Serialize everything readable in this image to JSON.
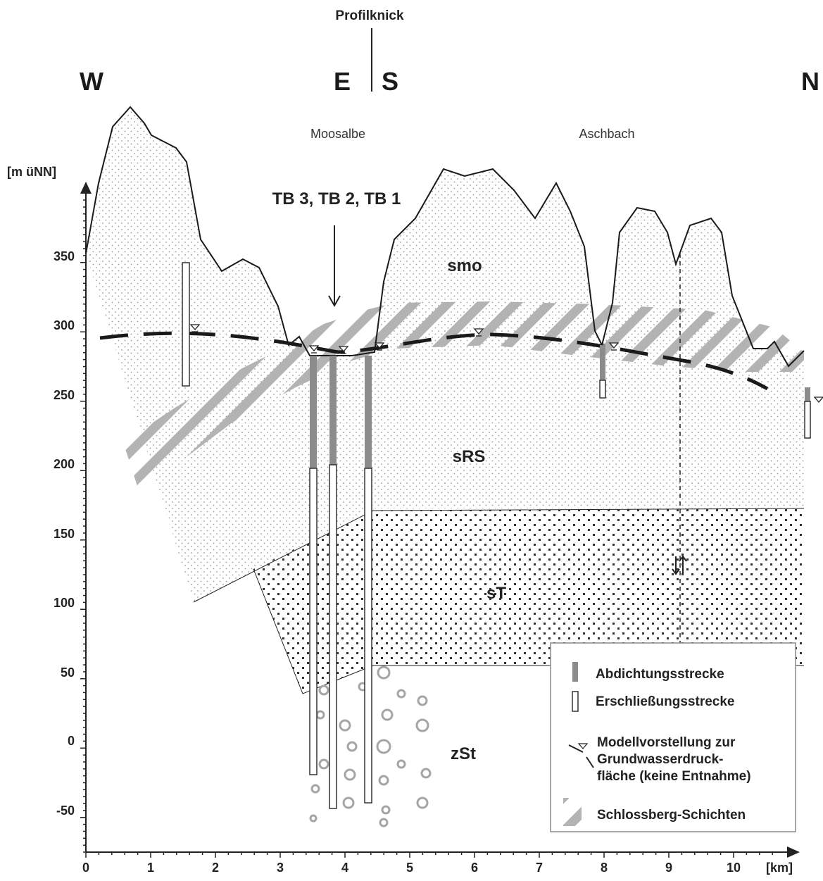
{
  "direction_labels": {
    "west": "W",
    "east": "E",
    "south": "S",
    "north": "N"
  },
  "kink_label": "Profilknick",
  "river_labels": {
    "moosalbe": "Moosalbe",
    "aschbach": "Aschbach"
  },
  "wells_label": "TB 3, TB 2, TB 1",
  "y_axis_label": "[m üNN]",
  "x_axis_label": "[km]",
  "y_ticks": [
    "350",
    "300",
    "250",
    "200",
    "150",
    "100",
    "50",
    "0",
    "-50"
  ],
  "x_ticks": [
    "0",
    "1",
    "2",
    "3",
    "4",
    "5",
    "6",
    "7",
    "8",
    "9",
    "10"
  ],
  "layers": {
    "smo": "smo",
    "srs": "sRS",
    "st": "sT",
    "zst": "zSt"
  },
  "legend": {
    "sealing": "Abdichtungsstrecke",
    "open": "Erschließungsstrecke",
    "model_line1": "Modellvorstellung zur",
    "model_line2": "Grundwasserdruck-",
    "model_line3": "fläche (keine Entnahme)",
    "schlossberg": "Schlossberg-Schichten"
  },
  "colors": {
    "hatch": "#b3b3b3",
    "sealing": "#8c8c8c",
    "ink": "#1a1a1a",
    "background": "#ffffff"
  }
}
